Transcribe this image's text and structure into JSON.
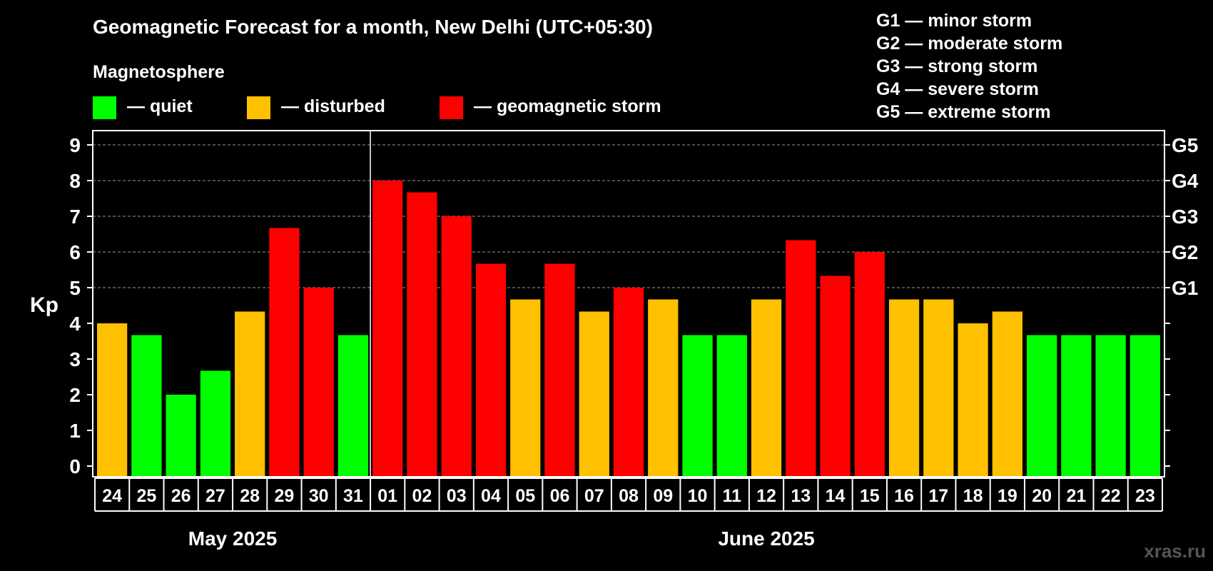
{
  "chart_data": {
    "type": "bar",
    "title": "Geomagnetic Forecast for a month, New Delhi (UTC+05:30)",
    "legend_title": "Magnetosphere",
    "legend": [
      {
        "label": "— quiet",
        "color": "#00ff00"
      },
      {
        "label": "— disturbed",
        "color": "#ffc000"
      },
      {
        "label": "— geomagnetic storm",
        "color": "#ff0000"
      }
    ],
    "storm_scale": [
      "G1 — minor storm",
      "G2 — moderate storm",
      "G3 — strong storm",
      "G4 — severe storm",
      "G5 — extreme storm"
    ],
    "ylabel": "Kp",
    "ylim": [
      0,
      9
    ],
    "yticks": [
      "0",
      "1",
      "2",
      "3",
      "4",
      "5",
      "6",
      "7",
      "8",
      "9"
    ],
    "right_ticks": [
      {
        "label": "G1",
        "kp": 5
      },
      {
        "label": "G2",
        "kp": 6
      },
      {
        "label": "G3",
        "kp": 7
      },
      {
        "label": "G4",
        "kp": 8
      },
      {
        "label": "G5",
        "kp": 9
      }
    ],
    "categories": [
      "24",
      "25",
      "26",
      "27",
      "28",
      "29",
      "30",
      "31",
      "01",
      "02",
      "03",
      "04",
      "05",
      "06",
      "07",
      "08",
      "09",
      "10",
      "11",
      "12",
      "13",
      "14",
      "15",
      "16",
      "17",
      "18",
      "19",
      "20",
      "21",
      "22",
      "23"
    ],
    "values": [
      4,
      3.67,
      2,
      2.67,
      4.33,
      6.67,
      5,
      3.67,
      8,
      7.67,
      7,
      5.67,
      4.67,
      5.67,
      4.33,
      5,
      4.67,
      3.67,
      3.67,
      4.67,
      6.33,
      5.33,
      6,
      4.67,
      4.67,
      4,
      4.33,
      3.67,
      3.67,
      3.67,
      3.67
    ],
    "levels": [
      "disturbed",
      "quiet",
      "quiet",
      "quiet",
      "disturbed",
      "storm",
      "storm",
      "quiet",
      "storm",
      "storm",
      "storm",
      "storm",
      "disturbed",
      "storm",
      "disturbed",
      "storm",
      "disturbed",
      "quiet",
      "quiet",
      "disturbed",
      "storm",
      "storm",
      "storm",
      "disturbed",
      "disturbed",
      "disturbed",
      "disturbed",
      "quiet",
      "quiet",
      "quiet",
      "quiet"
    ],
    "level_colors": {
      "quiet": "#00ff00",
      "disturbed": "#ffc000",
      "storm": "#ff0000"
    },
    "months": [
      {
        "label": "May 2025",
        "start": 0,
        "end": 7
      },
      {
        "label": "June 2025",
        "start": 8,
        "end": 30
      }
    ],
    "grid_dashed_from": 5
  },
  "watermark": "xras.ru"
}
